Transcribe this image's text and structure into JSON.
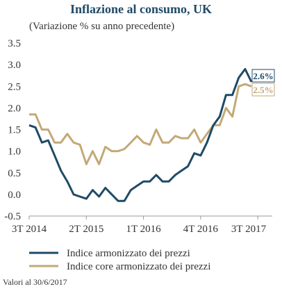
{
  "chart_data": {
    "type": "line",
    "title": "Inflazione al consumo, UK",
    "subtitle": "(Variazione % su anno precedente)",
    "ylim": [
      -0.5,
      3.5
    ],
    "yticks": [
      "3.5",
      "3.0",
      "2.5",
      "2.0",
      "1.5",
      "1.0",
      "0.5",
      "0.0",
      "-0.5"
    ],
    "ytick_values": [
      3.5,
      3.0,
      2.5,
      2.0,
      1.5,
      1.0,
      0.5,
      0.0,
      -0.5
    ],
    "xticks": [
      "3T 2014",
      "2T 2015",
      "1T 2016",
      "4T 2016",
      "3T 2017"
    ],
    "xtick_index": [
      0,
      9,
      18,
      27,
      36
    ],
    "grid": false,
    "colors": {
      "headline": "#1f4a66",
      "core": "#c2a976"
    },
    "series": [
      {
        "name": "Indice armonizzato dei prezzi",
        "color": "#1f4a66",
        "end_label": "2.6%",
        "values": [
          1.6,
          1.55,
          1.2,
          1.25,
          0.9,
          0.55,
          0.3,
          0.0,
          -0.05,
          -0.1,
          0.1,
          -0.05,
          0.15,
          0.0,
          -0.15,
          -0.15,
          0.1,
          0.2,
          0.3,
          0.3,
          0.45,
          0.3,
          0.3,
          0.45,
          0.55,
          0.65,
          0.95,
          0.9,
          1.2,
          1.6,
          1.8,
          2.3,
          2.3,
          2.7,
          2.9,
          2.6
        ]
      },
      {
        "name": "Indice core armonizzato dei prezzi",
        "color": "#c2a976",
        "end_label": "2.5%",
        "values": [
          1.85,
          1.85,
          1.5,
          1.5,
          1.2,
          1.2,
          1.4,
          1.2,
          1.15,
          0.7,
          1.0,
          0.7,
          1.1,
          1.0,
          1.0,
          1.05,
          1.2,
          1.35,
          1.2,
          1.15,
          1.5,
          1.2,
          1.2,
          1.35,
          1.3,
          1.3,
          1.5,
          1.2,
          1.4,
          1.6,
          1.6,
          2.0,
          1.8,
          2.5,
          2.55,
          2.5
        ]
      }
    ],
    "note": "Valori al 30/6/2017"
  }
}
